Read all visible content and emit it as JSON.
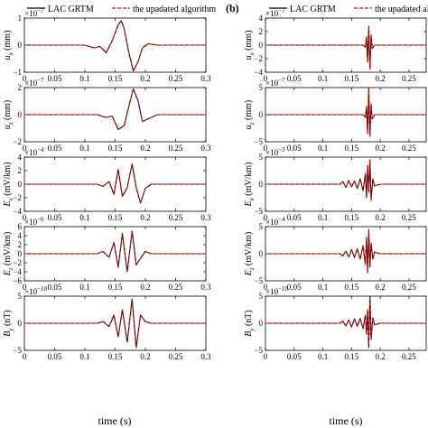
{
  "panel_labels": [
    "",
    "(b)"
  ],
  "legend": {
    "entries": [
      {
        "label": "LAC GRTM",
        "color": "#000000",
        "dash": "solid"
      },
      {
        "label": "the upadated algorithm",
        "color": "#e00000",
        "dash": "dashed"
      }
    ]
  },
  "xlabel": "time (s)",
  "chart_data": [
    {
      "type": "line",
      "panel": "a",
      "row": 1,
      "ylabel": "u_x (mm)",
      "exponent": "×10^{-7}",
      "xlim": [
        0,
        0.3
      ],
      "ylim": [
        -1,
        1
      ],
      "yticks": [
        -1,
        0,
        1
      ],
      "xticks": [
        0,
        0.05,
        0.1,
        0.15,
        0.2,
        0.25,
        0.3
      ],
      "xticklabels": [
        "0",
        "0.05",
        "0.1",
        "0.15",
        "0.2",
        "0.25",
        "0.3"
      ],
      "series": [
        {
          "name": "LAC GRTM",
          "x": [
            0,
            0.1,
            0.115,
            0.125,
            0.135,
            0.145,
            0.155,
            0.16,
            0.165,
            0.172,
            0.18,
            0.188,
            0.195,
            0.205,
            0.22,
            0.3
          ],
          "y": [
            0,
            0,
            -0.1,
            -0.05,
            -0.28,
            0.15,
            0.75,
            0.9,
            0.6,
            -0.2,
            -0.95,
            -0.6,
            -0.1,
            0.05,
            0,
            0
          ]
        },
        {
          "name": "the upadated algorithm",
          "x": [
            0,
            0.1,
            0.115,
            0.125,
            0.135,
            0.145,
            0.155,
            0.16,
            0.165,
            0.172,
            0.18,
            0.188,
            0.195,
            0.205,
            0.22,
            0.3
          ],
          "y": [
            0,
            0,
            -0.1,
            -0.05,
            -0.28,
            0.15,
            0.75,
            0.9,
            0.6,
            -0.2,
            -0.95,
            -0.6,
            -0.1,
            0.05,
            0,
            0
          ]
        }
      ]
    },
    {
      "type": "line",
      "panel": "a",
      "row": 2,
      "ylabel": "u_z (mm)",
      "exponent": "×10^{-7}",
      "xlim": [
        0,
        0.3
      ],
      "ylim": [
        -2,
        2
      ],
      "yticks": [
        -2,
        0,
        2
      ],
      "xticks": [
        0,
        0.05,
        0.1,
        0.15,
        0.2,
        0.25,
        0.3
      ],
      "xticklabels": [
        "0",
        "0.05",
        "0.1",
        "0.15",
        "0.2",
        "0.25",
        "0.3"
      ],
      "series": [
        {
          "name": "LAC GRTM",
          "x": [
            0,
            0.12,
            0.135,
            0.145,
            0.155,
            0.165,
            0.172,
            0.18,
            0.188,
            0.195,
            0.205,
            0.22,
            0.3
          ],
          "y": [
            0,
            0,
            -0.2,
            -0.1,
            -1.1,
            -0.8,
            0.5,
            1.9,
            1.0,
            -0.5,
            -0.3,
            0,
            0
          ]
        },
        {
          "name": "the upadated algorithm",
          "x": [
            0,
            0.12,
            0.135,
            0.145,
            0.155,
            0.165,
            0.172,
            0.18,
            0.188,
            0.195,
            0.205,
            0.22,
            0.3
          ],
          "y": [
            0,
            0,
            -0.2,
            -0.1,
            -1.1,
            -0.8,
            0.5,
            1.9,
            1.0,
            -0.5,
            -0.3,
            0,
            0
          ]
        }
      ]
    },
    {
      "type": "line",
      "panel": "a",
      "row": 3,
      "ylabel": "E_x (mV/km)",
      "exponent": "×10^{-4}",
      "xlim": [
        0,
        0.3
      ],
      "ylim": [
        -4,
        4
      ],
      "yticks": [
        -4,
        -2,
        0,
        2,
        4
      ],
      "xticks": [
        0,
        0.05,
        0.1,
        0.15,
        0.2,
        0.25,
        0.3
      ],
      "xticklabels": [
        "0",
        "0.05",
        "0.1",
        "0.15",
        "0.2",
        "0.25",
        "0.3"
      ],
      "series": [
        {
          "name": "LAC GRTM",
          "x": [
            0,
            0.12,
            0.13,
            0.14,
            0.148,
            0.155,
            0.162,
            0.17,
            0.178,
            0.185,
            0.192,
            0.2,
            0.21,
            0.3
          ],
          "y": [
            0,
            0,
            -0.3,
            0.4,
            -1.5,
            2.2,
            -1.8,
            -0.5,
            3.0,
            -0.5,
            -2.8,
            -0.6,
            0,
            0
          ]
        },
        {
          "name": "the upadated algorithm",
          "x": [
            0,
            0.12,
            0.13,
            0.14,
            0.148,
            0.155,
            0.162,
            0.17,
            0.178,
            0.185,
            0.192,
            0.2,
            0.21,
            0.3
          ],
          "y": [
            0,
            0,
            -0.3,
            0.4,
            -1.5,
            2.2,
            -1.8,
            -0.5,
            3.0,
            -0.5,
            -2.8,
            -0.6,
            0,
            0
          ]
        }
      ]
    },
    {
      "type": "line",
      "panel": "a",
      "row": 4,
      "ylabel": "E_z (mV/km)",
      "exponent": "×10^{-6}",
      "xlim": [
        0,
        0.3
      ],
      "ylim": [
        -6,
        6
      ],
      "yticks": [
        -6,
        -4,
        -2,
        0,
        2,
        4,
        6
      ],
      "xticks": [
        0,
        0.05,
        0.1,
        0.15,
        0.2,
        0.25,
        0.3
      ],
      "xticklabels": [
        "0",
        "0.05",
        "0.1",
        "0.15",
        "0.2",
        "0.25",
        "0.3"
      ],
      "series": [
        {
          "name": "LAC GRTM",
          "x": [
            0,
            0.12,
            0.13,
            0.14,
            0.148,
            0.155,
            0.162,
            0.17,
            0.178,
            0.185,
            0.192,
            0.2,
            0.21,
            0.3
          ],
          "y": [
            0,
            0,
            0.5,
            -0.8,
            2.5,
            -3.0,
            4.5,
            -4.0,
            5.0,
            -2.5,
            -1.0,
            0.5,
            0,
            0
          ]
        },
        {
          "name": "the upadated algorithm",
          "x": [
            0,
            0.12,
            0.13,
            0.14,
            0.148,
            0.155,
            0.162,
            0.17,
            0.178,
            0.185,
            0.192,
            0.2,
            0.21,
            0.3
          ],
          "y": [
            0,
            0,
            0.5,
            -0.8,
            2.5,
            -3.0,
            4.5,
            -4.0,
            5.0,
            -2.5,
            -1.0,
            0.5,
            0,
            0
          ]
        }
      ]
    },
    {
      "type": "line",
      "panel": "a",
      "row": 5,
      "ylabel": "B_y (nT)",
      "exponent": "×10^{-10}",
      "xlim": [
        0,
        0.3
      ],
      "ylim": [
        -5,
        5
      ],
      "yticks": [
        -5,
        0,
        5
      ],
      "xticks": [
        0,
        0.05,
        0.1,
        0.15,
        0.2,
        0.25,
        0.3
      ],
      "xticklabels": [
        "0",
        "0.05",
        "0.1",
        "0.15",
        "0.2",
        "0.25",
        "0.3"
      ],
      "series": [
        {
          "name": "LAC GRTM",
          "x": [
            0,
            0.12,
            0.13,
            0.14,
            0.148,
            0.155,
            0.162,
            0.17,
            0.178,
            0.185,
            0.192,
            0.2,
            0.21,
            0.3
          ],
          "y": [
            0,
            0,
            0.3,
            -0.6,
            1.5,
            -2.5,
            2.5,
            -3.5,
            4.5,
            -4.5,
            1.5,
            0.3,
            0,
            0
          ]
        },
        {
          "name": "the upadated algorithm",
          "x": [
            0,
            0.12,
            0.13,
            0.14,
            0.148,
            0.155,
            0.162,
            0.17,
            0.178,
            0.185,
            0.192,
            0.2,
            0.21,
            0.3
          ],
          "y": [
            0,
            0,
            0.3,
            -0.6,
            1.5,
            -2.5,
            2.5,
            -3.5,
            4.5,
            -4.5,
            1.5,
            0.3,
            0,
            0
          ]
        }
      ]
    },
    {
      "type": "line",
      "panel": "b",
      "row": 1,
      "ylabel": "u_x (mm)",
      "exponent": "×10^{-7}",
      "xlim": [
        0,
        0.28
      ],
      "ylim": [
        -4,
        4
      ],
      "yticks": [
        -4,
        -2,
        0,
        2,
        4
      ],
      "xticks": [
        0,
        0.05,
        0.1,
        0.15,
        0.2,
        0.25
      ],
      "xticklabels": [
        "0",
        "0.05",
        "0.1",
        "0.15",
        "0.2",
        "0.25"
      ],
      "series": [
        {
          "name": "LAC GRTM",
          "x": [
            0,
            0.17,
            0.174,
            0.176,
            0.178,
            0.18,
            0.182,
            0.184,
            0.186,
            0.19,
            0.28
          ],
          "y": [
            0,
            0,
            -0.3,
            1.2,
            -2.5,
            2.8,
            -3.5,
            1.5,
            -0.5,
            0,
            0
          ]
        },
        {
          "name": "the upadated algorithm",
          "x": [
            0,
            0.17,
            0.174,
            0.176,
            0.178,
            0.18,
            0.182,
            0.184,
            0.186,
            0.19,
            0.28
          ],
          "y": [
            0,
            0,
            -0.3,
            1.2,
            -2.5,
            2.8,
            -3.5,
            1.5,
            -0.5,
            0,
            0
          ]
        }
      ]
    },
    {
      "type": "line",
      "panel": "b",
      "row": 2,
      "ylabel": "u_z (mm)",
      "exponent": "×10^{-7}",
      "xlim": [
        0,
        0.28
      ],
      "ylim": [
        -5,
        5
      ],
      "yticks": [
        -5,
        0,
        5
      ],
      "xticks": [
        0,
        0.05,
        0.1,
        0.15,
        0.2,
        0.25
      ],
      "xticklabels": [
        "0",
        "0.05",
        "0.1",
        "0.15",
        "0.2",
        "0.25"
      ],
      "series": [
        {
          "name": "LAC GRTM",
          "x": [
            0,
            0.17,
            0.174,
            0.176,
            0.178,
            0.18,
            0.182,
            0.184,
            0.186,
            0.19,
            0.28
          ],
          "y": [
            0,
            0,
            -0.5,
            1.5,
            -3.5,
            5.0,
            -4.0,
            2.0,
            -0.8,
            0,
            0
          ]
        },
        {
          "name": "the upadated algorithm",
          "x": [
            0,
            0.17,
            0.174,
            0.176,
            0.178,
            0.18,
            0.182,
            0.184,
            0.186,
            0.19,
            0.28
          ],
          "y": [
            0,
            0,
            -0.5,
            1.5,
            -3.5,
            5.0,
            -4.0,
            2.0,
            -0.8,
            0,
            0
          ]
        }
      ]
    },
    {
      "type": "line",
      "panel": "b",
      "row": 3,
      "ylabel": "E_x (mV/km)",
      "exponent": "×10^{-3}",
      "xlim": [
        0,
        0.28
      ],
      "ylim": [
        -5,
        5
      ],
      "yticks": [
        -5,
        0,
        5
      ],
      "xticks": [
        0,
        0.05,
        0.1,
        0.15,
        0.2,
        0.25
      ],
      "xticklabels": [
        "0",
        "0.05",
        "0.1",
        "0.15",
        "0.2",
        "0.25"
      ],
      "series": [
        {
          "name": "LAC GRTM",
          "x": [
            0,
            0.13,
            0.135,
            0.14,
            0.145,
            0.15,
            0.155,
            0.16,
            0.165,
            0.17,
            0.174,
            0.176,
            0.178,
            0.18,
            0.182,
            0.184,
            0.187,
            0.19,
            0.2,
            0.28
          ],
          "y": [
            0,
            0,
            0.5,
            -0.6,
            0.7,
            -0.5,
            0.6,
            -0.8,
            1.0,
            -1.2,
            2.0,
            -2.5,
            3.5,
            -1.5,
            4.5,
            -3.0,
            1.0,
            -0.3,
            0,
            0
          ]
        },
        {
          "name": "the upadated algorithm",
          "x": [
            0,
            0.13,
            0.135,
            0.14,
            0.145,
            0.15,
            0.155,
            0.16,
            0.165,
            0.17,
            0.174,
            0.176,
            0.178,
            0.18,
            0.182,
            0.184,
            0.187,
            0.19,
            0.2,
            0.28
          ],
          "y": [
            0,
            0,
            0.5,
            -0.6,
            0.7,
            -0.5,
            0.6,
            -0.8,
            1.0,
            -1.2,
            2.0,
            -2.5,
            3.5,
            -1.5,
            4.5,
            -3.0,
            1.0,
            -0.3,
            0,
            0
          ]
        }
      ]
    },
    {
      "type": "line",
      "panel": "b",
      "row": 4,
      "ylabel": "E_z (mV/km)",
      "exponent": "×10^{-4}",
      "xlim": [
        0,
        0.28
      ],
      "ylim": [
        -5,
        5
      ],
      "yticks": [
        -5,
        0,
        5
      ],
      "xticks": [
        0,
        0.05,
        0.1,
        0.15,
        0.2,
        0.25
      ],
      "xticklabels": [
        "0",
        "0.05",
        "0.1",
        "0.15",
        "0.2",
        "0.25"
      ],
      "series": [
        {
          "name": "LAC GRTM",
          "x": [
            0,
            0.13,
            0.135,
            0.14,
            0.145,
            0.15,
            0.155,
            0.16,
            0.165,
            0.17,
            0.174,
            0.176,
            0.178,
            0.18,
            0.182,
            0.184,
            0.187,
            0.19,
            0.2,
            0.28
          ],
          "y": [
            0,
            0,
            -0.4,
            0.5,
            -0.6,
            0.8,
            -0.7,
            0.9,
            -1.0,
            1.5,
            -2.0,
            3.0,
            -3.5,
            4.5,
            -2.5,
            2.0,
            -1.0,
            0.3,
            0,
            0
          ]
        },
        {
          "name": "the upadated algorithm",
          "x": [
            0,
            0.13,
            0.135,
            0.14,
            0.145,
            0.15,
            0.155,
            0.16,
            0.165,
            0.17,
            0.174,
            0.176,
            0.178,
            0.18,
            0.182,
            0.184,
            0.187,
            0.19,
            0.2,
            0.28
          ],
          "y": [
            0,
            0,
            -0.4,
            0.5,
            -0.6,
            0.8,
            -0.7,
            0.9,
            -1.0,
            1.5,
            -2.0,
            3.0,
            -3.5,
            4.5,
            -2.5,
            2.0,
            -1.0,
            0.3,
            0,
            0
          ]
        }
      ]
    },
    {
      "type": "line",
      "panel": "b",
      "row": 5,
      "ylabel": "B_y (nT)",
      "exponent": "×10^{-10}",
      "xlim": [
        0,
        0.28
      ],
      "ylim": [
        -5,
        5
      ],
      "yticks": [
        -5,
        0,
        5
      ],
      "xticks": [
        0,
        0.05,
        0.1,
        0.15,
        0.2,
        0.25
      ],
      "xticklabels": [
        "0",
        "0.05",
        "0.1",
        "0.15",
        "0.2",
        "0.25"
      ],
      "series": [
        {
          "name": "LAC GRTM",
          "x": [
            0,
            0.13,
            0.135,
            0.14,
            0.145,
            0.15,
            0.155,
            0.16,
            0.165,
            0.17,
            0.174,
            0.176,
            0.178,
            0.18,
            0.182,
            0.184,
            0.187,
            0.19,
            0.2,
            0.28
          ],
          "y": [
            0,
            0,
            0.4,
            -0.5,
            0.6,
            -0.7,
            0.8,
            -0.6,
            0.9,
            -1.0,
            1.5,
            -2.0,
            2.5,
            -4.5,
            5.0,
            -3.0,
            1.0,
            -0.3,
            0,
            0
          ]
        },
        {
          "name": "the upadated algorithm",
          "x": [
            0,
            0.13,
            0.135,
            0.14,
            0.145,
            0.15,
            0.155,
            0.16,
            0.165,
            0.17,
            0.174,
            0.176,
            0.178,
            0.18,
            0.182,
            0.184,
            0.187,
            0.19,
            0.2,
            0.28
          ],
          "y": [
            0,
            0,
            0.4,
            -0.5,
            0.6,
            -0.7,
            0.8,
            -0.6,
            0.9,
            -1.0,
            1.5,
            -2.0,
            2.5,
            -4.5,
            5.0,
            -3.0,
            1.0,
            -0.3,
            0,
            0
          ]
        }
      ]
    }
  ]
}
